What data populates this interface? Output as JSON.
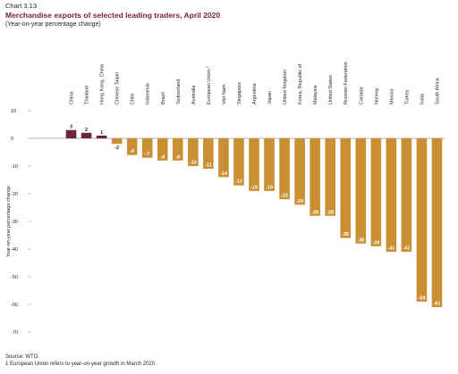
{
  "header": {
    "chart_number": "Chart 3.13",
    "title": "Merchandise exports of selected leading traders, April 2020",
    "subtitle": "(Year-on-year percentage change)"
  },
  "footer": {
    "source": "Source: WTO.",
    "note": "1 European Union refers to year-on-year growth in March 2020."
  },
  "colors": {
    "positive": "#6b2737",
    "negative": "#c98f32",
    "axis": "#9a9a9a"
  },
  "chart_data": {
    "type": "bar",
    "ylabel": "Year-on-year percentage change",
    "ylim": [
      -70,
      10
    ],
    "yticks": [
      10,
      0,
      -10,
      -20,
      -30,
      -40,
      -50,
      -60,
      -70
    ],
    "grid": false,
    "categories": [
      "China",
      "Thailand",
      "Hong Kong, China",
      "Chinese Taipei",
      "Chile",
      "Indonesia",
      "Brazil",
      "Switzerland",
      "Australia",
      "European Union",
      "Viet Nam",
      "Singapore",
      "Argentina",
      "Japan",
      "United Kingdom",
      "Korea, Republic of",
      "Malaysia",
      "United States",
      "Russian Federation",
      "Canada",
      "Norway",
      "Mexico",
      "Turkey",
      "India",
      "South Africa"
    ],
    "category_superscripts": [
      "",
      "",
      "",
      "",
      "",
      "",
      "",
      "",
      "",
      "1",
      "",
      "",
      "",
      "",
      "",
      "",
      "",
      "",
      "",
      "",
      "",
      "",
      "",
      "",
      ""
    ],
    "values": [
      3,
      2,
      1,
      -2,
      -6,
      -7,
      -8,
      -8,
      -10,
      -11,
      -14,
      -17,
      -19,
      -19,
      -22,
      -24,
      -28,
      -28,
      -36,
      -38,
      -39,
      -41,
      -41,
      -59,
      -61
    ]
  }
}
